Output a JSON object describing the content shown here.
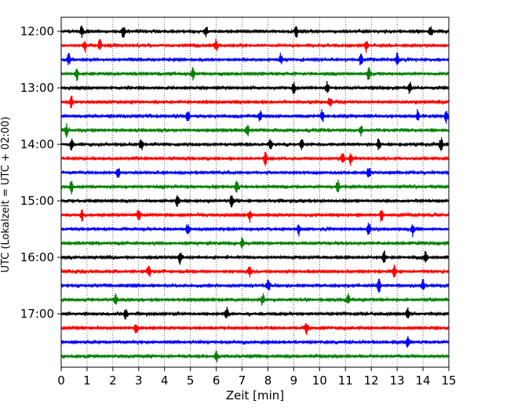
{
  "chart_data": {
    "type": "line",
    "xlabel": "Zeit  [min]",
    "ylabel": "UTC (Lokalzeit = UTC + 02:00)",
    "xlim": [
      0,
      15
    ],
    "x_ticks": [
      0,
      1,
      2,
      3,
      4,
      5,
      6,
      7,
      8,
      9,
      10,
      11,
      12,
      13,
      14,
      15
    ],
    "y_ticks": [
      "12:00",
      "13:00",
      "14:00",
      "15:00",
      "16:00",
      "17:00"
    ],
    "trace_interval_min": 15,
    "grid": "vertical dotted",
    "color_cycle": [
      "#000000",
      "#ff0000",
      "#0000ff",
      "#008000"
    ],
    "traces": [
      {
        "start": "12:00",
        "color": "#000000",
        "events": [
          0.8,
          2.4,
          5.6,
          9.1,
          14.3
        ]
      },
      {
        "start": "12:15",
        "color": "#ff0000",
        "events": [
          0.9,
          1.5,
          6.0,
          11.8
        ]
      },
      {
        "start": "12:30",
        "color": "#0000ff",
        "events": [
          0.3,
          8.5,
          11.6,
          13.0
        ]
      },
      {
        "start": "12:45",
        "color": "#008000",
        "events": [
          0.6,
          5.1,
          11.9
        ]
      },
      {
        "start": "13:00",
        "color": "#000000",
        "events": [
          9.0,
          10.3,
          13.5
        ]
      },
      {
        "start": "13:15",
        "color": "#ff0000",
        "events": [
          0.4,
          10.4
        ]
      },
      {
        "start": "13:30",
        "color": "#0000ff",
        "events": [
          4.9,
          7.7,
          10.1,
          13.8,
          14.9
        ]
      },
      {
        "start": "13:45",
        "color": "#008000",
        "events": [
          0.2,
          7.2,
          11.6
        ]
      },
      {
        "start": "14:00",
        "color": "#000000",
        "events": [
          0.4,
          3.1,
          8.1,
          9.3,
          12.3,
          14.7
        ]
      },
      {
        "start": "14:15",
        "color": "#ff0000",
        "events": [
          7.9,
          10.9,
          11.2
        ]
      },
      {
        "start": "14:30",
        "color": "#0000ff",
        "events": [
          2.2,
          11.9
        ]
      },
      {
        "start": "14:45",
        "color": "#008000",
        "events": [
          0.4,
          6.8,
          10.7
        ]
      },
      {
        "start": "15:00",
        "color": "#000000",
        "events": [
          4.5,
          6.6
        ]
      },
      {
        "start": "15:15",
        "color": "#ff0000",
        "events": [
          0.8,
          3.0,
          7.3,
          12.4
        ]
      },
      {
        "start": "15:30",
        "color": "#0000ff",
        "events": [
          4.9,
          9.2,
          11.9,
          13.6
        ]
      },
      {
        "start": "15:45",
        "color": "#008000",
        "events": [
          7.0
        ]
      },
      {
        "start": "16:00",
        "color": "#000000",
        "events": [
          4.6,
          12.5,
          14.1
        ]
      },
      {
        "start": "16:15",
        "color": "#ff0000",
        "events": [
          3.4,
          7.3,
          12.9
        ]
      },
      {
        "start": "16:30",
        "color": "#0000ff",
        "events": [
          8.0,
          12.3,
          14.0
        ]
      },
      {
        "start": "16:45",
        "color": "#008000",
        "events": [
          2.1,
          7.8,
          11.1
        ]
      },
      {
        "start": "17:00",
        "color": "#000000",
        "events": [
          2.5,
          6.4,
          13.4
        ]
      },
      {
        "start": "17:15",
        "color": "#ff0000",
        "events": [
          2.9,
          9.5
        ]
      },
      {
        "start": "17:30",
        "color": "#0000ff",
        "events": [
          13.4
        ]
      },
      {
        "start": "17:45",
        "color": "#008000",
        "events": [
          6.0
        ]
      }
    ]
  }
}
